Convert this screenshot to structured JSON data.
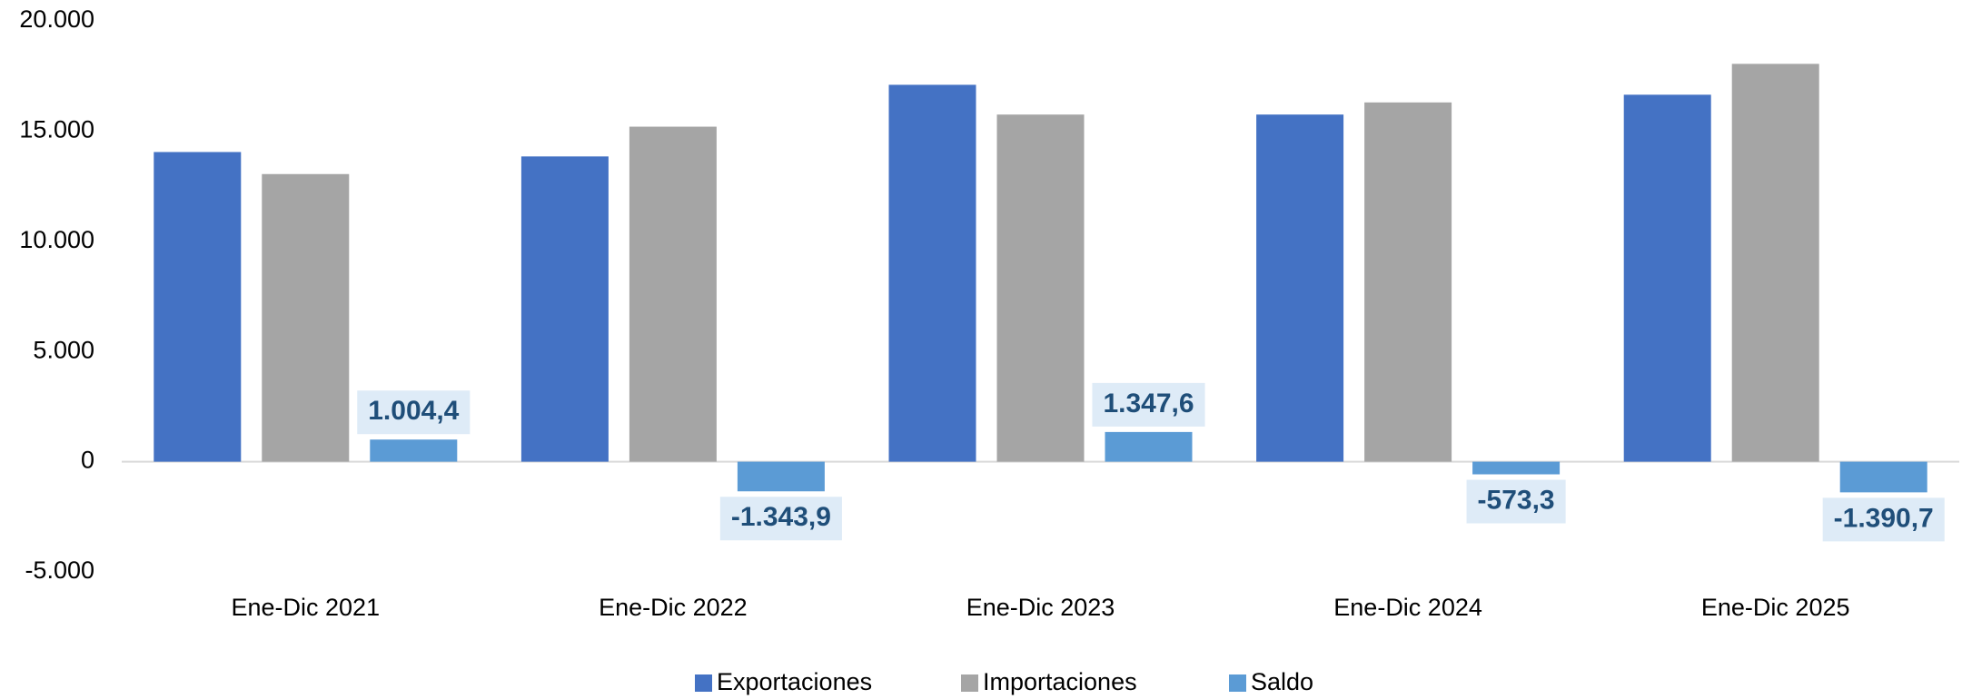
{
  "chart_data": {
    "type": "bar",
    "categories": [
      "Ene-Dic 2021",
      "Ene-Dic 2022",
      "Ene-Dic 2023",
      "Ene-Dic 2024",
      "Ene-Dic 2025"
    ],
    "series": [
      {
        "name": "Exportaciones",
        "color": "#4472c4",
        "values": [
          14050,
          13850,
          17100,
          15750,
          16650
        ]
      },
      {
        "name": "Importaciones",
        "color": "#a5a5a5",
        "values": [
          13050,
          15200,
          15750,
          16300,
          18050
        ]
      },
      {
        "name": "Saldo",
        "color": "#5b9bd5",
        "values": [
          1004.4,
          -1343.9,
          1347.6,
          -573.3,
          -1390.7
        ],
        "value_labels": [
          "1.004,4",
          "-1.343,9",
          "1.347,6",
          "-573,3",
          "-1.390,7"
        ]
      }
    ],
    "ylim": [
      -5000,
      20000
    ],
    "yticks": [
      {
        "value": -5000,
        "label": "-5.000"
      },
      0,
      {
        "value": 5000,
        "label": "5.000"
      },
      {
        "value": 10000,
        "label": "10.000"
      },
      {
        "value": 15000,
        "label": "15.000"
      },
      {
        "value": 20000,
        "label": "20.000"
      }
    ],
    "grid": false,
    "legend": "bottom"
  }
}
